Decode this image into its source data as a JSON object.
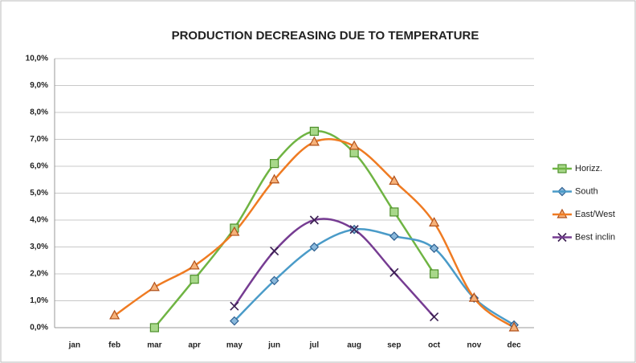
{
  "chart_data": {
    "type": "line",
    "title": "PRODUCTION DECREASING DUE TO TEMPERATURE",
    "categories": [
      "jan",
      "feb",
      "mar",
      "apr",
      "may",
      "jun",
      "jul",
      "aug",
      "sep",
      "oct",
      "nov",
      "dec"
    ],
    "series": [
      {
        "name": "Horizz.",
        "color": "#6fb443",
        "values": [
          null,
          null,
          0.0,
          1.8,
          3.7,
          6.1,
          7.3,
          6.5,
          4.3,
          2.0,
          null,
          null
        ]
      },
      {
        "name": "South",
        "color": "#4a9bc8",
        "values": [
          null,
          null,
          null,
          null,
          0.25,
          1.75,
          3.0,
          3.65,
          3.4,
          2.95,
          1.1,
          0.1
        ]
      },
      {
        "name": "East/West",
        "color": "#ef7b22",
        "values": [
          null,
          0.45,
          1.5,
          2.3,
          3.55,
          5.5,
          6.9,
          6.75,
          5.45,
          3.9,
          1.1,
          0.0
        ]
      },
      {
        "name": "Best inclin",
        "color": "#763c92",
        "values": [
          null,
          null,
          null,
          null,
          0.8,
          2.85,
          4.0,
          3.65,
          2.05,
          0.4,
          null,
          null
        ]
      }
    ],
    "ylim": [
      0,
      10
    ],
    "yticks": [
      {
        "value": 0,
        "label": "0,0%"
      },
      {
        "value": 1,
        "label": "1,0%"
      },
      {
        "value": 2,
        "label": "2,0%"
      },
      {
        "value": 3,
        "label": "3,0%"
      },
      {
        "value": 4,
        "label": "4,0%"
      },
      {
        "value": 5,
        "label": "5,0%"
      },
      {
        "value": 6,
        "label": "6,0%"
      },
      {
        "value": 7,
        "label": "7,0%"
      },
      {
        "value": 8,
        "label": "8,0%"
      },
      {
        "value": 9,
        "label": "9,0%"
      },
      {
        "value": 10,
        "label": "10,0%"
      }
    ],
    "grid": true,
    "legend": "right"
  }
}
